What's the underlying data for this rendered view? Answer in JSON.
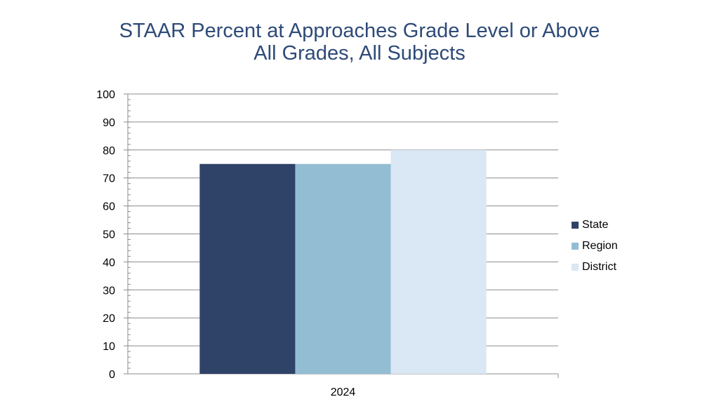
{
  "title_line1": "STAAR Percent at Approaches Grade Level or Above",
  "title_line2": "All Grades, All Subjects",
  "chart_data": {
    "type": "bar",
    "categories": [
      "2024"
    ],
    "series": [
      {
        "name": "State",
        "values": [
          75
        ],
        "color": "#2f4268"
      },
      {
        "name": "Region",
        "values": [
          75
        ],
        "color": "#93bdd3"
      },
      {
        "name": "District",
        "values": [
          80
        ],
        "color": "#dae7f4"
      }
    ],
    "ylim": [
      0,
      100
    ],
    "yticks": [
      0,
      10,
      20,
      30,
      40,
      50,
      60,
      70,
      80,
      90,
      100
    ],
    "grid": true,
    "legend_position": "right"
  }
}
